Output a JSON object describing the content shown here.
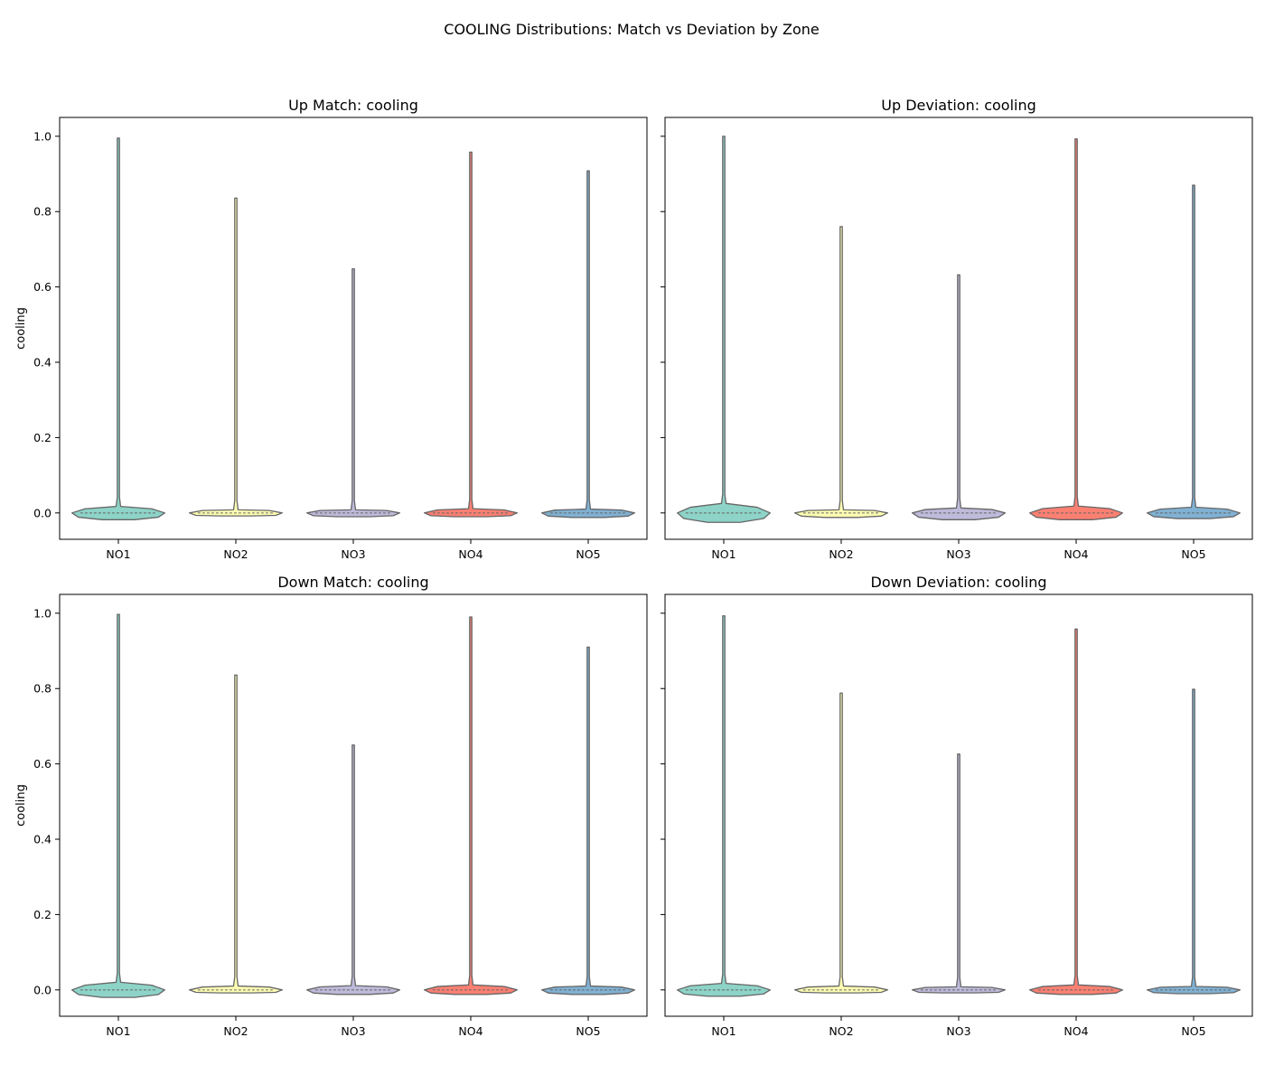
{
  "figure": {
    "suptitle": "COOLING Distributions: Match vs Deviation by Zone"
  },
  "palette": {
    "NO1": "#8dd3c7",
    "NO2": "#ffffb3",
    "NO3": "#bebada",
    "NO4": "#fb8072",
    "NO5": "#80b1d3",
    "outline": "#666666"
  },
  "chart_data": [
    {
      "type": "violin",
      "title": "Up Match: cooling",
      "xlabel": "",
      "ylabel": "cooling",
      "categories": [
        "NO1",
        "NO2",
        "NO3",
        "NO4",
        "NO5"
      ],
      "ylim": [
        -0.07,
        1.05
      ],
      "yticks": [
        "0.0",
        "0.2",
        "0.4",
        "0.6",
        "0.8",
        "1.0"
      ],
      "series": [
        {
          "category": "NO1",
          "max": 0.995,
          "min": -0.018,
          "peak": 0.022,
          "width": 0.79
        },
        {
          "category": "NO2",
          "max": 0.836,
          "min": -0.008,
          "peak": 0.013,
          "width": 0.79
        },
        {
          "category": "NO3",
          "max": 0.648,
          "min": -0.01,
          "peak": 0.013,
          "width": 0.79
        },
        {
          "category": "NO4",
          "max": 0.958,
          "min": -0.01,
          "peak": 0.016,
          "width": 0.79
        },
        {
          "category": "NO5",
          "max": 0.908,
          "min": -0.012,
          "peak": 0.015,
          "width": 0.79
        }
      ]
    },
    {
      "type": "violin",
      "title": "Up Deviation: cooling",
      "xlabel": "",
      "ylabel": "",
      "categories": [
        "NO1",
        "NO2",
        "NO3",
        "NO4",
        "NO5"
      ],
      "ylim": [
        -0.07,
        1.05
      ],
      "yticks": [
        "0.0",
        "0.2",
        "0.4",
        "0.6",
        "0.8",
        "1.0"
      ],
      "series": [
        {
          "category": "NO1",
          "max": 1.0,
          "min": -0.025,
          "peak": 0.03,
          "width": 0.79
        },
        {
          "category": "NO2",
          "max": 0.76,
          "min": -0.012,
          "peak": 0.013,
          "width": 0.79
        },
        {
          "category": "NO3",
          "max": 0.632,
          "min": -0.018,
          "peak": 0.018,
          "width": 0.79
        },
        {
          "category": "NO4",
          "max": 0.993,
          "min": -0.018,
          "peak": 0.023,
          "width": 0.79
        },
        {
          "category": "NO5",
          "max": 0.87,
          "min": -0.015,
          "peak": 0.02,
          "width": 0.79
        }
      ]
    },
    {
      "type": "violin",
      "title": "Down Match: cooling",
      "xlabel": "",
      "ylabel": "cooling",
      "categories": [
        "NO1",
        "NO2",
        "NO3",
        "NO4",
        "NO5"
      ],
      "ylim": [
        -0.07,
        1.05
      ],
      "yticks": [
        "0.0",
        "0.2",
        "0.4",
        "0.6",
        "0.8",
        "1.0"
      ],
      "series": [
        {
          "category": "NO1",
          "max": 0.997,
          "min": -0.02,
          "peak": 0.025,
          "width": 0.79
        },
        {
          "category": "NO2",
          "max": 0.836,
          "min": -0.008,
          "peak": 0.015,
          "width": 0.79
        },
        {
          "category": "NO3",
          "max": 0.65,
          "min": -0.012,
          "peak": 0.016,
          "width": 0.79
        },
        {
          "category": "NO4",
          "max": 0.99,
          "min": -0.012,
          "peak": 0.018,
          "width": 0.79
        },
        {
          "category": "NO5",
          "max": 0.91,
          "min": -0.012,
          "peak": 0.015,
          "width": 0.79
        }
      ]
    },
    {
      "type": "violin",
      "title": "Down Deviation: cooling",
      "xlabel": "",
      "ylabel": "",
      "categories": [
        "NO1",
        "NO2",
        "NO3",
        "NO4",
        "NO5"
      ],
      "ylim": [
        -0.07,
        1.05
      ],
      "yticks": [
        "0.0",
        "0.2",
        "0.4",
        "0.6",
        "0.8",
        "1.0"
      ],
      "series": [
        {
          "category": "NO1",
          "max": 0.993,
          "min": -0.017,
          "peak": 0.022,
          "width": 0.79
        },
        {
          "category": "NO2",
          "max": 0.788,
          "min": -0.008,
          "peak": 0.015,
          "width": 0.79
        },
        {
          "category": "NO3",
          "max": 0.626,
          "min": -0.008,
          "peak": 0.013,
          "width": 0.79
        },
        {
          "category": "NO4",
          "max": 0.958,
          "min": -0.012,
          "peak": 0.018,
          "width": 0.79
        },
        {
          "category": "NO5",
          "max": 0.798,
          "min": -0.01,
          "peak": 0.014,
          "width": 0.79
        }
      ]
    }
  ]
}
